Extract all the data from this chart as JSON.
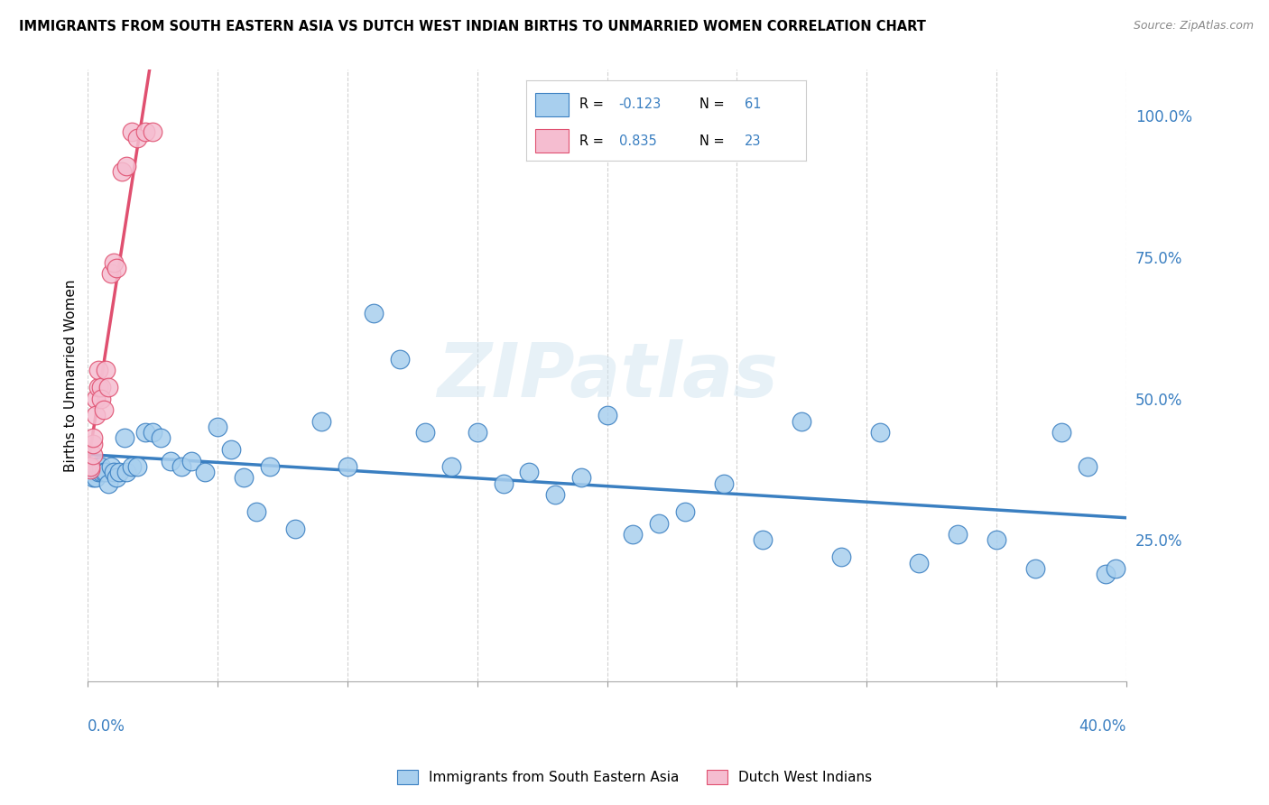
{
  "title": "IMMIGRANTS FROM SOUTH EASTERN ASIA VS DUTCH WEST INDIAN BIRTHS TO UNMARRIED WOMEN CORRELATION CHART",
  "source": "Source: ZipAtlas.com",
  "ylabel": "Births to Unmarried Women",
  "right_ytick_vals": [
    0.25,
    0.5,
    0.75,
    1.0
  ],
  "legend_label1": "Immigrants from South Eastern Asia",
  "legend_label2": "Dutch West Indians",
  "R1": -0.123,
  "N1": 61,
  "R2": 0.835,
  "N2": 23,
  "color_blue": "#A8CFEE",
  "color_pink": "#F5BDD0",
  "line_blue": "#3A7FC1",
  "line_pink": "#E05070",
  "blue_x": [
    0.001,
    0.002,
    0.002,
    0.003,
    0.003,
    0.004,
    0.004,
    0.005,
    0.005,
    0.006,
    0.007,
    0.008,
    0.009,
    0.01,
    0.011,
    0.012,
    0.014,
    0.015,
    0.017,
    0.019,
    0.022,
    0.025,
    0.028,
    0.032,
    0.036,
    0.04,
    0.045,
    0.05,
    0.055,
    0.06,
    0.065,
    0.07,
    0.08,
    0.09,
    0.1,
    0.11,
    0.12,
    0.13,
    0.14,
    0.15,
    0.16,
    0.17,
    0.18,
    0.19,
    0.2,
    0.21,
    0.22,
    0.23,
    0.245,
    0.26,
    0.275,
    0.29,
    0.305,
    0.32,
    0.335,
    0.35,
    0.365,
    0.375,
    0.385,
    0.392,
    0.396
  ],
  "blue_y": [
    0.38,
    0.37,
    0.36,
    0.38,
    0.36,
    0.37,
    0.38,
    0.37,
    0.38,
    0.37,
    0.37,
    0.35,
    0.38,
    0.37,
    0.36,
    0.37,
    0.43,
    0.37,
    0.38,
    0.38,
    0.44,
    0.44,
    0.43,
    0.39,
    0.38,
    0.39,
    0.37,
    0.45,
    0.41,
    0.36,
    0.3,
    0.38,
    0.27,
    0.46,
    0.38,
    0.65,
    0.57,
    0.44,
    0.38,
    0.44,
    0.35,
    0.37,
    0.33,
    0.36,
    0.47,
    0.26,
    0.28,
    0.3,
    0.35,
    0.25,
    0.46,
    0.22,
    0.44,
    0.21,
    0.26,
    0.25,
    0.2,
    0.44,
    0.38,
    0.19,
    0.2
  ],
  "pink_x": [
    0.001,
    0.001,
    0.002,
    0.002,
    0.002,
    0.003,
    0.003,
    0.004,
    0.004,
    0.005,
    0.005,
    0.006,
    0.007,
    0.008,
    0.009,
    0.01,
    0.011,
    0.013,
    0.015,
    0.017,
    0.019,
    0.022,
    0.025
  ],
  "pink_y": [
    0.375,
    0.38,
    0.4,
    0.42,
    0.43,
    0.5,
    0.47,
    0.52,
    0.55,
    0.52,
    0.5,
    0.48,
    0.55,
    0.52,
    0.72,
    0.74,
    0.73,
    0.9,
    0.91,
    0.97,
    0.96,
    0.97,
    0.97
  ],
  "watermark": "ZIPatlas",
  "bg_color": "#FFFFFF",
  "grid_color": "#CCCCCC"
}
